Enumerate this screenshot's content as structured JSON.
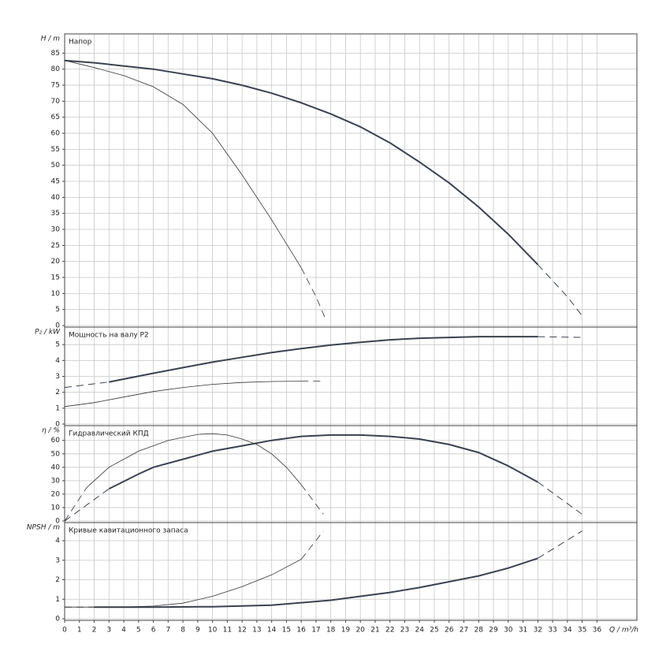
{
  "chart_data": [
    {
      "type": "line",
      "title": "Напор",
      "y_label": "H / m",
      "ylim": [
        0,
        91
      ],
      "xlim": [
        0,
        38.7
      ],
      "yticks": [
        0,
        5,
        10,
        15,
        20,
        25,
        30,
        35,
        40,
        45,
        50,
        55,
        60,
        65,
        70,
        75,
        80,
        85
      ],
      "series": [
        {
          "color": "#3a4250",
          "width": 2,
          "dashed": false,
          "x": [
            0,
            2,
            4,
            6,
            8,
            10,
            12,
            14,
            16,
            18,
            20,
            22,
            24,
            26,
            28,
            30,
            32
          ],
          "values": [
            82.7,
            82,
            81,
            80,
            78.5,
            77,
            75,
            72.5,
            69.5,
            66,
            62,
            57,
            51,
            44.5,
            37,
            28.5,
            19
          ]
        },
        {
          "color": "#3a4250",
          "width": 1,
          "dashed": true,
          "x": [
            32,
            33,
            34,
            35
          ],
          "values": [
            19,
            14,
            9,
            3
          ]
        },
        {
          "color": "#333333",
          "width": 0.8,
          "dashed": false,
          "x": [
            0,
            2,
            4,
            6,
            8,
            10,
            12,
            14,
            16
          ],
          "values": [
            82.7,
            80.5,
            78,
            74.5,
            69,
            60,
            47,
            33,
            18
          ]
        },
        {
          "color": "#333333",
          "width": 0.8,
          "dashed": true,
          "x": [
            16,
            17,
            17.6
          ],
          "values": [
            18,
            9,
            2.5
          ]
        }
      ]
    },
    {
      "type": "line",
      "title": "Мощность на валу P2",
      "y_label": "P₂ / kW",
      "ylim": [
        0,
        6.1
      ],
      "xlim": [
        0,
        38.7
      ],
      "yticks": [
        0,
        1,
        2,
        3,
        4,
        5
      ],
      "series": [
        {
          "color": "#3a4250",
          "width": 1,
          "dashed": true,
          "x": [
            0,
            3
          ],
          "values": [
            2.3,
            2.65
          ]
        },
        {
          "color": "#3a4250",
          "width": 2,
          "dashed": false,
          "x": [
            3,
            6,
            8,
            10,
            12,
            14,
            16,
            18,
            20,
            22,
            24,
            26,
            28,
            30,
            32
          ],
          "values": [
            2.65,
            3.2,
            3.55,
            3.9,
            4.2,
            4.5,
            4.75,
            4.97,
            5.15,
            5.3,
            5.4,
            5.45,
            5.5,
            5.5,
            5.5
          ]
        },
        {
          "color": "#3a4250",
          "width": 1,
          "dashed": true,
          "x": [
            32,
            35
          ],
          "values": [
            5.5,
            5.45
          ]
        },
        {
          "color": "#333333",
          "width": 0.8,
          "dashed": false,
          "x": [
            0,
            2,
            4,
            6,
            8,
            10,
            12,
            14,
            16
          ],
          "values": [
            1.1,
            1.35,
            1.7,
            2.05,
            2.3,
            2.5,
            2.62,
            2.68,
            2.7
          ]
        },
        {
          "color": "#333333",
          "width": 0.8,
          "dashed": true,
          "x": [
            16,
            17.5
          ],
          "values": [
            2.7,
            2.7
          ]
        }
      ]
    },
    {
      "type": "line",
      "title": "Гидравлический КПД",
      "y_label": "η / %",
      "ylim": [
        0,
        71
      ],
      "xlim": [
        0,
        38.7
      ],
      "yticks": [
        0,
        10,
        20,
        30,
        40,
        50,
        60
      ],
      "series": [
        {
          "color": "#3a4250",
          "width": 1,
          "dashed": true,
          "x": [
            0,
            3
          ],
          "values": [
            0,
            24
          ]
        },
        {
          "color": "#3a4250",
          "width": 2,
          "dashed": false,
          "x": [
            3,
            5,
            6,
            8,
            10,
            12,
            14,
            16,
            18,
            20,
            22,
            24,
            26,
            28,
            30,
            32
          ],
          "values": [
            24,
            35,
            40,
            46,
            52,
            56,
            60,
            63,
            64,
            64,
            63,
            61,
            57,
            51,
            41,
            29
          ]
        },
        {
          "color": "#3a4250",
          "width": 1,
          "dashed": true,
          "x": [
            32,
            35
          ],
          "values": [
            29,
            5
          ]
        },
        {
          "color": "#333333",
          "width": 0.8,
          "dashed": true,
          "x": [
            0,
            1.5
          ],
          "values": [
            0,
            25
          ]
        },
        {
          "color": "#333333",
          "width": 0.8,
          "dashed": false,
          "x": [
            1.5,
            3,
            5,
            7,
            9,
            10,
            11,
            12,
            13,
            14,
            15,
            16
          ],
          "values": [
            25,
            40,
            52,
            60,
            64.5,
            65,
            64,
            61,
            57,
            50,
            40,
            27
          ]
        },
        {
          "color": "#333333",
          "width": 0.8,
          "dashed": true,
          "x": [
            16,
            17.5
          ],
          "values": [
            27,
            5
          ]
        }
      ]
    },
    {
      "type": "line",
      "title": "Кривые кавитационного запаса",
      "y_label": "NPSH / m",
      "x_label": "Q / m³/h",
      "ylim": [
        0,
        4.93
      ],
      "xlim": [
        0,
        38.7
      ],
      "yticks": [
        0,
        1,
        2,
        3,
        4
      ],
      "xticks": [
        0,
        1,
        2,
        3,
        4,
        5,
        6,
        7,
        8,
        9,
        10,
        11,
        12,
        13,
        14,
        15,
        16,
        17,
        18,
        19,
        20,
        21,
        22,
        23,
        24,
        25,
        26,
        27,
        28,
        29,
        30,
        31,
        32,
        33,
        34,
        35,
        36
      ],
      "series": [
        {
          "color": "#3a4250",
          "width": 1,
          "dashed": true,
          "x": [
            0,
            2
          ],
          "values": [
            0.6,
            0.6
          ]
        },
        {
          "color": "#3a4250",
          "width": 2,
          "dashed": false,
          "x": [
            2,
            6,
            10,
            14,
            18,
            20,
            22,
            24,
            26,
            28,
            30,
            32
          ],
          "values": [
            0.6,
            0.6,
            0.62,
            0.7,
            0.95,
            1.15,
            1.35,
            1.6,
            1.9,
            2.2,
            2.6,
            3.1
          ]
        },
        {
          "color": "#3a4250",
          "width": 1,
          "dashed": true,
          "x": [
            32,
            35
          ],
          "values": [
            3.1,
            4.5
          ]
        },
        {
          "color": "#333333",
          "width": 0.8,
          "dashed": false,
          "x": [
            0,
            4,
            6,
            8,
            10,
            12,
            14,
            16
          ],
          "values": [
            0.6,
            0.6,
            0.65,
            0.8,
            1.15,
            1.65,
            2.25,
            3.05
          ]
        },
        {
          "color": "#333333",
          "width": 0.8,
          "dashed": true,
          "x": [
            16,
            17.5
          ],
          "values": [
            3.05,
            4.5
          ]
        }
      ]
    }
  ]
}
